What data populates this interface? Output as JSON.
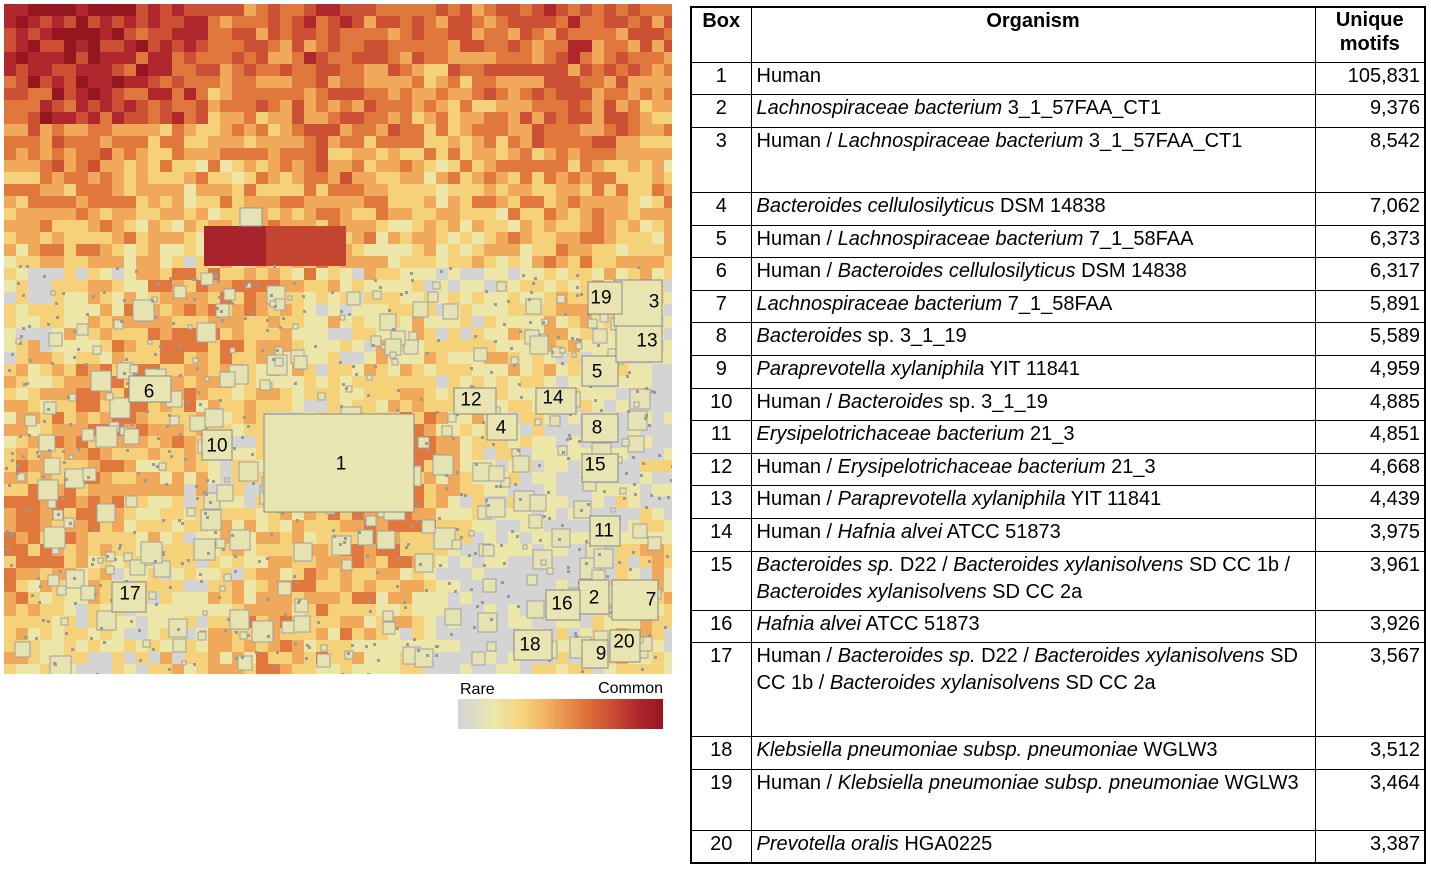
{
  "legend": {
    "rare_label": "Rare",
    "common_label": "Common",
    "colors": [
      "#d4d4d4",
      "#ece6a8",
      "#f5d27a",
      "#f0a85a",
      "#e0783e",
      "#cc5033",
      "#b1272e",
      "#961620"
    ]
  },
  "box_labels": [
    "1",
    "2",
    "3",
    "4",
    "5",
    "6",
    "7",
    "8",
    "9",
    "10",
    "11",
    "12",
    "13",
    "14",
    "15",
    "16",
    "17",
    "18",
    "19",
    "20"
  ],
  "table": {
    "headers": {
      "box": "Box",
      "organism": "Organism",
      "unique_motifs": "Unique motifs"
    },
    "rows": [
      {
        "box": "1",
        "organism": [
          [
            "Human",
            false
          ]
        ],
        "motifs": "105,831"
      },
      {
        "box": "2",
        "organism": [
          [
            "Lachnospiraceae bacterium",
            true
          ],
          [
            " 3_1_57FAA_CT1",
            false
          ]
        ],
        "motifs": "9,376"
      },
      {
        "box": "3",
        "organism": [
          [
            "Human /  ",
            false
          ],
          [
            "Lachnospiraceae bacterium",
            true
          ],
          [
            " 3_1_57FAA_CT1",
            false
          ]
        ],
        "motifs": "8,542"
      },
      {
        "box": "4",
        "organism": [
          [
            "Bacteroides cellulosilyticus",
            true
          ],
          [
            " DSM 14838",
            false
          ]
        ],
        "motifs": "7,062"
      },
      {
        "box": "5",
        "organism": [
          [
            "Human / ",
            false
          ],
          [
            "Lachnospiraceae bacterium",
            true
          ],
          [
            " 7_1_58FAA",
            false
          ]
        ],
        "motifs": "6,373"
      },
      {
        "box": "6",
        "organism": [
          [
            "Human / ",
            false
          ],
          [
            "Bacteroides cellulosilyticus",
            true
          ],
          [
            " DSM 14838",
            false
          ]
        ],
        "motifs": "6,317"
      },
      {
        "box": "7",
        "organism": [
          [
            "Lachnospiraceae bacterium",
            true
          ],
          [
            " 7_1_58FAA",
            false
          ]
        ],
        "motifs": "5,891"
      },
      {
        "box": "8",
        "organism": [
          [
            "Bacteroides",
            true
          ],
          [
            " sp. 3_1_19",
            false
          ]
        ],
        "motifs": "5,589"
      },
      {
        "box": "9",
        "organism": [
          [
            "Paraprevotella xylaniphila",
            true
          ],
          [
            " YIT 11841",
            false
          ]
        ],
        "motifs": "4,959"
      },
      {
        "box": "10",
        "organism": [
          [
            "Human / ",
            false
          ],
          [
            "Bacteroides",
            true
          ],
          [
            " sp. 3_1_19",
            false
          ]
        ],
        "motifs": "4,885"
      },
      {
        "box": "11",
        "organism": [
          [
            "Erysipelotrichaceae bacterium",
            true
          ],
          [
            " 21_3",
            false
          ]
        ],
        "motifs": "4,851"
      },
      {
        "box": "12",
        "organism": [
          [
            "Human / ",
            false
          ],
          [
            "Erysipelotrichaceae bacterium",
            true
          ],
          [
            " 21_3",
            false
          ]
        ],
        "motifs": "4,668"
      },
      {
        "box": "13",
        "organism": [
          [
            "Human / ",
            false
          ],
          [
            "Paraprevotella xylaniphila",
            true
          ],
          [
            " YIT 11841",
            false
          ]
        ],
        "motifs": "4,439"
      },
      {
        "box": "14",
        "organism": [
          [
            "Human / ",
            false
          ],
          [
            "Hafnia alvei",
            true
          ],
          [
            " ATCC 51873",
            false
          ]
        ],
        "motifs": "3,975"
      },
      {
        "box": "15",
        "organism": [
          [
            "Bacteroides sp.",
            true
          ],
          [
            " D22 /  ",
            false
          ],
          [
            "Bacteroides xylanisolvens",
            true
          ],
          [
            " SD CC 1b / ",
            false
          ],
          [
            "Bacteroides xylanisolvens",
            true
          ],
          [
            " SD CC 2a",
            false
          ]
        ],
        "motifs": "3,961"
      },
      {
        "box": "16",
        "organism": [
          [
            "Hafnia alvei",
            true
          ],
          [
            " ATCC 51873",
            false
          ]
        ],
        "motifs": "3,926"
      },
      {
        "box": "17",
        "organism": [
          [
            "Human / ",
            false
          ],
          [
            "Bacteroides sp.",
            true
          ],
          [
            " D22 / ",
            false
          ],
          [
            "Bacteroides xylanisolvens",
            true
          ],
          [
            " SD CC 1b / ",
            false
          ],
          [
            "Bacteroides xylanisolvens",
            true
          ],
          [
            " SD CC 2a",
            false
          ]
        ],
        "motifs": "3,567"
      },
      {
        "box": "18",
        "organism": [
          [
            "Klebsiella pneumoniae subsp. pneumoniae",
            true
          ],
          [
            " WGLW3",
            false
          ]
        ],
        "motifs": "3,512"
      },
      {
        "box": "19",
        "organism": [
          [
            "Human / ",
            false
          ],
          [
            "Klebsiella pneumoniae subsp. pneumoniae",
            true
          ],
          [
            " WGLW3",
            false
          ]
        ],
        "motifs": "3,464"
      },
      {
        "box": "20",
        "organism": [
          [
            "Prevotella oralis",
            true
          ],
          [
            " HGA0225",
            false
          ]
        ],
        "motifs": "3,387"
      }
    ]
  }
}
